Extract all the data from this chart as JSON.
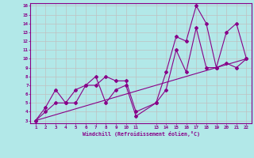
{
  "xlabel": "Windchill (Refroidissement éolien,°C)",
  "background_color": "#b2e8e8",
  "grid_color": "#c0c0c0",
  "line_color": "#880088",
  "spine_color": "#880088",
  "xlim": [
    1,
    22
  ],
  "ylim": [
    3,
    16
  ],
  "xticks": [
    1,
    2,
    3,
    4,
    5,
    6,
    7,
    8,
    9,
    10,
    11,
    13,
    14,
    15,
    16,
    17,
    18,
    19,
    20,
    21,
    22
  ],
  "yticks": [
    3,
    4,
    5,
    6,
    7,
    8,
    9,
    10,
    11,
    12,
    13,
    14,
    15,
    16
  ],
  "series1_x": [
    1,
    2,
    3,
    4,
    5,
    6,
    7,
    8,
    9,
    10,
    11,
    13,
    14,
    15,
    16,
    17,
    18,
    19,
    20,
    21,
    22
  ],
  "series1_y": [
    3,
    4,
    5,
    5,
    5,
    7,
    7,
    8,
    7.5,
    7.5,
    4,
    5,
    8.5,
    12.5,
    12,
    16,
    14,
    9,
    13,
    14,
    10
  ],
  "series2_x": [
    1,
    2,
    3,
    4,
    5,
    6,
    7,
    8,
    9,
    10,
    11,
    13,
    14,
    15,
    16,
    17,
    18,
    19,
    20,
    21,
    22
  ],
  "series2_y": [
    3,
    4.5,
    6.5,
    5,
    6.5,
    7,
    8,
    5,
    6.5,
    7,
    3.5,
    5,
    6.5,
    11,
    8.5,
    13.5,
    9,
    9,
    9.5,
    9,
    10
  ],
  "series3_x": [
    1,
    22
  ],
  "series3_y": [
    3,
    10
  ]
}
